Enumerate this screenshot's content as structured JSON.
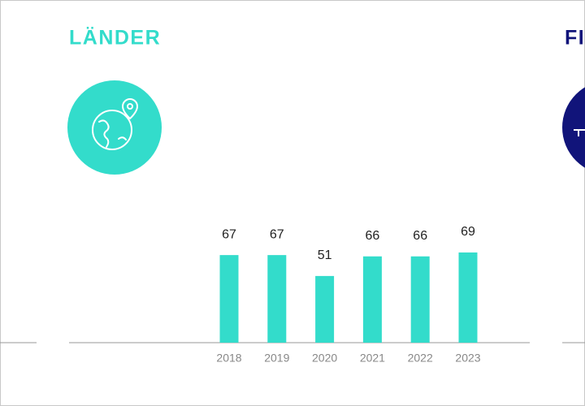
{
  "chart_data": {
    "type": "bar",
    "title": "LÄNDER",
    "categories": [
      "2018",
      "2019",
      "2020",
      "2021",
      "2022",
      "2023"
    ],
    "values": [
      67,
      67,
      51,
      66,
      66,
      69
    ],
    "color": "#33dccb"
  },
  "next_panel": {
    "title": "FI"
  }
}
